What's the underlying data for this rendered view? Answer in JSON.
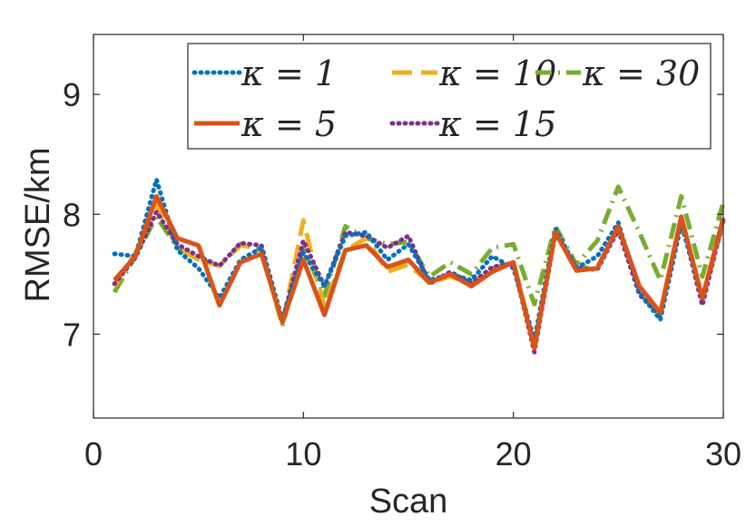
{
  "chart_data": {
    "type": "line",
    "xlabel": "Scan",
    "ylabel": "RMSE/km",
    "xlim": [
      0,
      30
    ],
    "ylim": [
      6.3,
      9.5
    ],
    "x_ticks": [
      "0",
      "10",
      "20",
      "30"
    ],
    "y_ticks": [
      "7",
      "8",
      "9"
    ],
    "x": [
      1,
      2,
      3,
      4,
      5,
      6,
      7,
      8,
      9,
      10,
      11,
      12,
      13,
      14,
      15,
      16,
      17,
      18,
      19,
      20,
      21,
      22,
      23,
      24,
      25,
      26,
      27,
      28,
      29,
      30
    ],
    "legend_position": "top-right",
    "series": [
      {
        "name": "κ = 1",
        "color": "#0072BD",
        "dash": "dotted",
        "values": [
          7.67,
          7.65,
          8.29,
          7.7,
          7.55,
          7.3,
          7.62,
          7.72,
          7.12,
          7.68,
          7.4,
          7.82,
          7.85,
          7.62,
          7.75,
          7.45,
          7.5,
          7.45,
          7.65,
          7.55,
          6.95,
          7.88,
          7.55,
          7.65,
          7.93,
          7.35,
          7.12,
          7.92,
          7.3,
          7.95
        ]
      },
      {
        "name": "κ = 5",
        "color": "#D95319",
        "dash": "solid",
        "values": [
          7.45,
          7.65,
          8.15,
          7.8,
          7.74,
          7.24,
          7.6,
          7.67,
          7.1,
          7.62,
          7.16,
          7.7,
          7.74,
          7.56,
          7.62,
          7.43,
          7.5,
          7.4,
          7.52,
          7.6,
          6.88,
          7.85,
          7.53,
          7.55,
          7.9,
          7.4,
          7.18,
          7.98,
          7.3,
          7.97
        ]
      },
      {
        "name": "κ = 10",
        "color": "#EDB120",
        "dash": "dashed",
        "values": [
          7.4,
          7.68,
          8.08,
          7.72,
          7.62,
          7.57,
          7.74,
          7.72,
          7.08,
          7.95,
          7.22,
          7.7,
          7.8,
          7.52,
          7.58,
          7.43,
          7.48,
          7.42,
          7.55,
          7.6,
          6.92,
          7.87,
          7.55,
          7.56,
          7.88,
          7.38,
          7.15,
          7.95,
          7.28,
          7.93
        ]
      },
      {
        "name": "κ = 15",
        "color": "#7E2F8E",
        "dash": "dotted",
        "values": [
          7.42,
          7.64,
          8.02,
          7.75,
          7.65,
          7.57,
          7.76,
          7.74,
          7.11,
          7.78,
          7.4,
          7.85,
          7.82,
          7.72,
          7.82,
          7.42,
          7.52,
          7.42,
          7.56,
          7.59,
          6.85,
          7.84,
          7.55,
          7.54,
          7.87,
          7.33,
          7.15,
          7.95,
          7.24,
          7.96
        ]
      },
      {
        "name": "κ = 30",
        "color": "#77AC30",
        "dash": "dashdot",
        "values": [
          7.35,
          7.65,
          7.98,
          7.72,
          7.63,
          7.57,
          7.75,
          7.7,
          7.07,
          7.72,
          7.32,
          7.9,
          7.8,
          7.75,
          7.77,
          7.48,
          7.6,
          7.5,
          7.72,
          7.75,
          7.25,
          7.9,
          7.58,
          7.78,
          8.23,
          7.85,
          7.45,
          8.15,
          7.48,
          8.1
        ]
      }
    ]
  }
}
